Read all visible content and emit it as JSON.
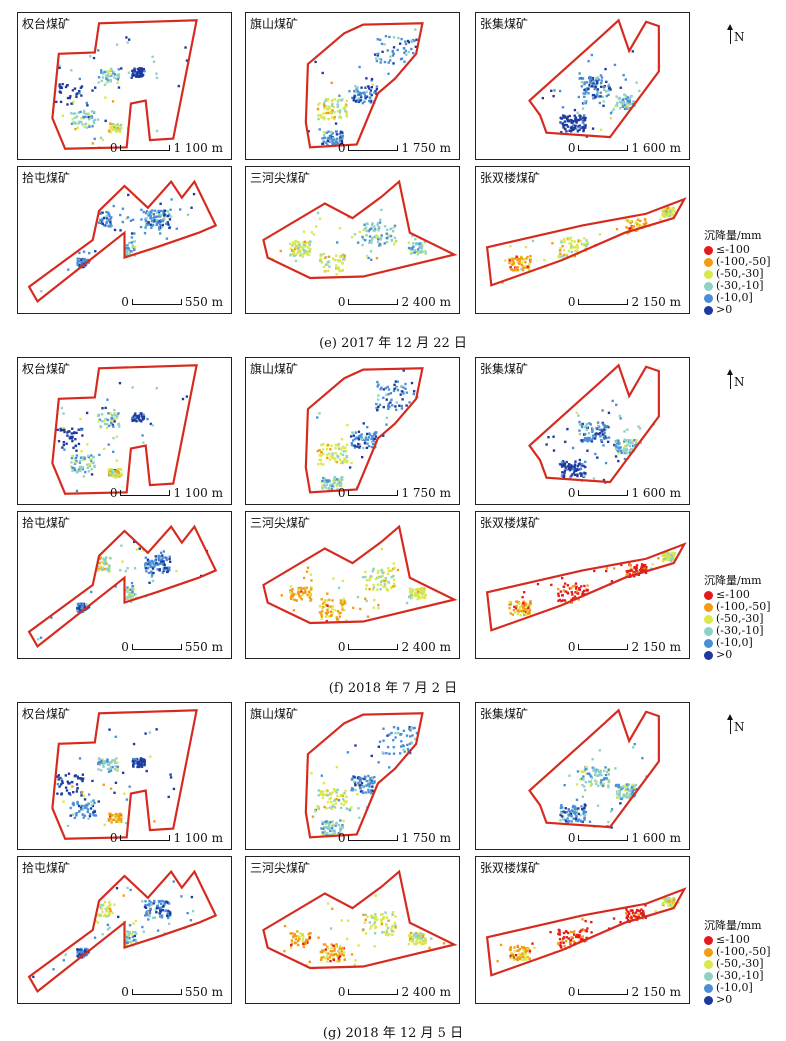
{
  "captions": [
    "(e) 2017 年 12 月 22 日",
    "(f) 2018 年 7 月 2 日",
    "(g) 2018 年 12 月 5 日"
  ],
  "north_label": "N",
  "legend": {
    "title": "沉降量/mm",
    "classes": [
      {
        "label": "≤-100",
        "color": "#e41a1c"
      },
      {
        "label": "(-100,-50]",
        "color": "#f39c12"
      },
      {
        "label": "(-50,-30]",
        "color": "#d9e84a"
      },
      {
        "label": "(-30,-10]",
        "color": "#8fd1c4"
      },
      {
        "label": "(-10,0]",
        "color": "#4a8fd6"
      },
      {
        "label": ">0",
        "color": "#1f3a9e"
      }
    ]
  },
  "mines": [
    {
      "name": "权台煤矿",
      "scale": "0 1 100 m"
    },
    {
      "name": "旗山煤矿",
      "scale": "0 1 750 m"
    },
    {
      "name": "张集煤矿",
      "scale": "0 1 600 m"
    },
    {
      "name": "拾屯煤矿",
      "scale": "0 550 m"
    },
    {
      "name": "三河尖煤矿",
      "scale": "0 2 400 m"
    },
    {
      "name": "张双楼煤矿",
      "scale": "0 2 150 m"
    }
  ],
  "boundary_color": "#d62a1f"
}
